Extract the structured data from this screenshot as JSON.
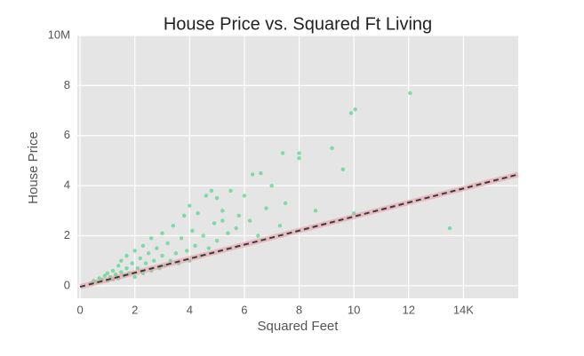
{
  "chart_data": {
    "type": "scatter",
    "title": "House Price vs. Squared Ft Living",
    "x_label": "Squared Feet",
    "y_label": "House Price",
    "x": [
      0.4,
      0.5,
      0.6,
      0.7,
      0.8,
      0.9,
      1.0,
      1.0,
      1.1,
      1.2,
      1.2,
      1.3,
      1.4,
      1.4,
      1.5,
      1.5,
      1.6,
      1.7,
      1.7,
      1.8,
      1.9,
      2.0,
      2.0,
      2.1,
      2.2,
      2.3,
      2.3,
      2.4,
      2.5,
      2.6,
      2.6,
      2.7,
      2.8,
      2.9,
      3.0,
      3.0,
      3.1,
      3.2,
      3.3,
      3.4,
      3.5,
      3.6,
      3.7,
      3.8,
      3.9,
      4.0,
      4.0,
      4.1,
      4.2,
      4.3,
      4.4,
      4.5,
      4.6,
      4.7,
      4.9,
      5.0,
      5.2,
      5.4,
      5.8,
      6.2,
      6.8,
      12.05,
      10.05,
      9.9,
      9.2,
      9.6,
      8.0,
      8.0,
      7.4,
      6.6,
      6.3,
      7.0,
      13.5,
      10.0,
      8.6,
      7.5,
      6.0,
      5.0,
      5.5,
      4.8,
      5.7,
      6.5,
      7.3,
      5.2
    ],
    "values": [
      0.1,
      0.2,
      0.15,
      0.3,
      0.25,
      0.4,
      0.2,
      0.5,
      0.35,
      0.6,
      0.25,
      0.45,
      0.8,
      0.3,
      0.55,
      1.0,
      0.4,
      0.7,
      1.2,
      0.5,
      0.9,
      0.35,
      1.4,
      0.7,
      1.1,
      0.5,
      1.6,
      0.9,
      1.3,
      0.6,
      1.9,
      1.0,
      1.5,
      0.7,
      2.1,
      1.2,
      0.8,
      1.7,
      1.0,
      2.4,
      1.3,
      0.9,
      1.9,
      2.8,
      1.4,
      1.0,
      3.2,
      2.2,
      1.6,
      2.9,
      1.2,
      2.0,
      3.6,
      1.5,
      2.5,
      1.8,
      3.0,
      2.1,
      2.8,
      2.6,
      3.1,
      7.7,
      7.05,
      6.9,
      5.5,
      4.65,
      5.3,
      5.1,
      5.3,
      4.5,
      4.45,
      4.0,
      2.3,
      2.9,
      3.0,
      3.3,
      3.6,
      3.5,
      3.8,
      3.8,
      2.3,
      2.0,
      2.4,
      2.6
    ],
    "color": "#58d68d",
    "fit": {
      "x": [
        0,
        16
      ],
      "values": [
        -0.04,
        4.45
      ],
      "color": "#3a3a3a",
      "band_color": "#e8a0a8"
    },
    "xlim": [
      -0.1,
      16
    ],
    "ylim": [
      -0.5,
      10
    ],
    "xticks": [
      0,
      2,
      4,
      6,
      8,
      10,
      12,
      {
        "value": 14,
        "label": "14K"
      }
    ],
    "yticks": [
      0,
      2,
      4,
      6,
      8,
      {
        "value": 10,
        "label": "10M"
      }
    ],
    "grid": true
  }
}
